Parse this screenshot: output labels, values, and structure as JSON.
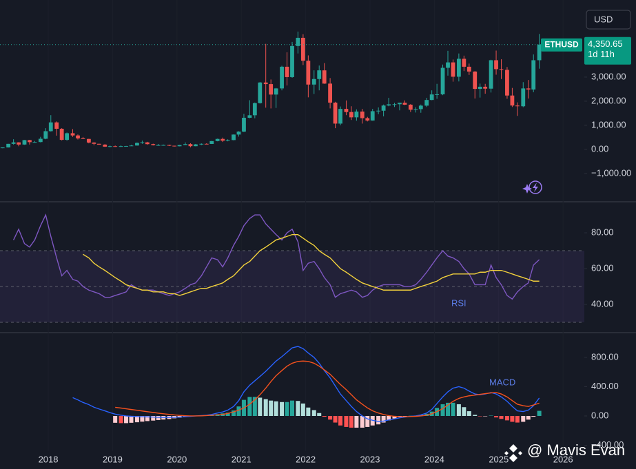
{
  "currency": "USD",
  "watermark": "@ Mavis Evan",
  "chart_data": [
    {
      "type": "candlestick",
      "symbol": "ETHUSD",
      "last_price": {
        "value": 4350.65,
        "label": "4,350.65"
      },
      "countdown": "1d 11h",
      "x": [
        2017.29,
        2017.38,
        2017.46,
        2017.54,
        2017.63,
        2017.71,
        2017.79,
        2017.88,
        2017.96,
        2018.04,
        2018.13,
        2018.21,
        2018.29,
        2018.38,
        2018.46,
        2018.54,
        2018.63,
        2018.71,
        2018.79,
        2018.88,
        2018.96,
        2019.04,
        2019.13,
        2019.21,
        2019.29,
        2019.38,
        2019.46,
        2019.54,
        2019.63,
        2019.71,
        2019.79,
        2019.88,
        2019.96,
        2020.04,
        2020.13,
        2020.21,
        2020.29,
        2020.38,
        2020.46,
        2020.54,
        2020.63,
        2020.71,
        2020.79,
        2020.88,
        2020.96,
        2021.04,
        2021.13,
        2021.21,
        2021.29,
        2021.38,
        2021.46,
        2021.54,
        2021.63,
        2021.71,
        2021.79,
        2021.88,
        2021.96,
        2022.04,
        2022.13,
        2022.21,
        2022.29,
        2022.38,
        2022.46,
        2022.54,
        2022.63,
        2022.71,
        2022.79,
        2022.88,
        2022.96,
        2023.04,
        2023.13,
        2023.21,
        2023.29,
        2023.38,
        2023.46,
        2023.54,
        2023.63,
        2023.71,
        2023.79,
        2023.88,
        2023.96,
        2024.04,
        2024.13,
        2024.21,
        2024.29,
        2024.38,
        2024.46,
        2024.54,
        2024.63,
        2024.71,
        2024.79,
        2024.88,
        2024.96,
        2025.04,
        2025.13,
        2025.21,
        2025.29,
        2025.38,
        2025.46,
        2025.54,
        2025.63
      ],
      "open": [
        50,
        79,
        230,
        290,
        200,
        385,
        300,
        305,
        440,
        755,
        1120,
        855,
        395,
        670,
        578,
        455,
        433,
        282,
        232,
        197,
        113,
        133,
        107,
        136,
        141,
        160,
        268,
        291,
        218,
        172,
        180,
        182,
        152,
        130,
        180,
        218,
        133,
        207,
        231,
        226,
        345,
        434,
        359,
        386,
        615,
        737,
        1312,
        1416,
        1919,
        2775,
        2710,
        2275,
        2530,
        3430,
        3000,
        4290,
        4630,
        3680,
        2690,
        2920,
        3280,
        2730,
        1940,
        1070,
        1680,
        1550,
        1330,
        1570,
        1295,
        1197,
        1585,
        1605,
        1820,
        1870,
        1875,
        1935,
        1855,
        1645,
        1670,
        1815,
        2050,
        2280,
        2285,
        3385,
        3610,
        3015,
        3760,
        3430,
        3230,
        2510,
        2600,
        2520,
        3700,
        3330,
        3300,
        2235,
        1820,
        1790,
        2530,
        2485,
        3700
      ],
      "high": [
        80,
        230,
        420,
        300,
        390,
        395,
        350,
        520,
        880,
        1420,
        1160,
        880,
        700,
        840,
        620,
        515,
        438,
        300,
        235,
        222,
        160,
        160,
        165,
        145,
        184,
        285,
        362,
        315,
        237,
        226,
        199,
        192,
        153,
        185,
        288,
        253,
        228,
        248,
        254,
        350,
        445,
        489,
        418,
        622,
        755,
        1475,
        2040,
        1945,
        2800,
        4380,
        2900,
        2550,
        3470,
        4030,
        4460,
        4890,
        4780,
        3900,
        3280,
        3480,
        3580,
        2960,
        1975,
        1780,
        2030,
        1790,
        1660,
        1680,
        1350,
        1680,
        1740,
        1860,
        2140,
        1930,
        1940,
        2030,
        1880,
        1750,
        1860,
        2140,
        2450,
        2720,
        3520,
        4090,
        3730,
        3980,
        3890,
        3560,
        3250,
        2730,
        2720,
        3720,
        4100,
        3740,
        3420,
        2550,
        1950,
        2790,
        2880,
        3940,
        4790
      ],
      "low": [
        48,
        78,
        200,
        130,
        190,
        200,
        280,
        290,
        420,
        740,
        570,
        370,
        360,
        520,
        410,
        430,
        250,
        167,
        193,
        102,
        82,
        102,
        101,
        123,
        140,
        158,
        230,
        194,
        162,
        152,
        155,
        138,
        118,
        126,
        175,
        86,
        128,
        176,
        215,
        224,
        335,
        308,
        334,
        376,
        530,
        715,
        1290,
        1290,
        1900,
        1730,
        1700,
        1720,
        2450,
        2650,
        2970,
        3980,
        3500,
        2160,
        2300,
        2450,
        2720,
        1700,
        880,
        1000,
        1420,
        1220,
        1190,
        1070,
        1160,
        1190,
        1460,
        1370,
        1790,
        1760,
        1620,
        1840,
        1550,
        1530,
        1520,
        1760,
        2040,
        2100,
        2250,
        3060,
        2810,
        2820,
        3250,
        3090,
        2110,
        2150,
        2310,
        2360,
        3100,
        2920,
        2100,
        1760,
        1390,
        1750,
        2110,
        2370,
        3350
      ],
      "close": [
        79,
        230,
        290,
        200,
        385,
        300,
        305,
        440,
        755,
        1120,
        855,
        395,
        670,
        578,
        455,
        433,
        282,
        232,
        197,
        113,
        133,
        107,
        136,
        141,
        160,
        268,
        291,
        218,
        172,
        180,
        182,
        152,
        130,
        180,
        218,
        133,
        207,
        231,
        226,
        345,
        434,
        359,
        386,
        615,
        737,
        1312,
        1416,
        1919,
        2775,
        2710,
        2275,
        2530,
        3430,
        3000,
        4290,
        4630,
        3680,
        2690,
        2920,
        3280,
        2730,
        1940,
        1070,
        1680,
        1550,
        1330,
        1570,
        1295,
        1197,
        1585,
        1605,
        1820,
        1870,
        1875,
        1935,
        1855,
        1645,
        1670,
        1815,
        2050,
        2280,
        2285,
        3385,
        3610,
        3015,
        3760,
        3430,
        3230,
        2510,
        2600,
        2520,
        3700,
        3330,
        3300,
        2235,
        1820,
        1790,
        2530,
        2485,
        3700,
        4350.65
      ],
      "up_color": "#26a69a",
      "down_color": "#ef5350",
      "xlim": [
        2017.25,
        2026.33
      ],
      "xticks": [
        2018,
        2019,
        2020,
        2021,
        2022,
        2023,
        2024,
        2025,
        2026
      ],
      "ylim": [
        -2090,
        6200
      ],
      "yticks": [
        {
          "value": -1000,
          "label": "−1,000.00"
        },
        {
          "value": 0,
          "label": "0.00"
        },
        {
          "value": 1000,
          "label": "1,000.00"
        },
        {
          "value": 2000,
          "label": "2,000.00"
        },
        {
          "value": 3000,
          "label": "3,000.00"
        }
      ]
    },
    {
      "type": "line",
      "label": "RSI",
      "ylim": [
        25.4,
        95.4
      ],
      "yticks": [
        {
          "value": 80,
          "label": "80.00"
        },
        {
          "value": 60,
          "label": "60.00"
        },
        {
          "value": 40,
          "label": "40.00"
        }
      ],
      "levels": [
        70,
        50,
        30
      ],
      "series": [
        {
          "color": "#7e57c2",
          "values": [
            null,
            null,
            76,
            82,
            74,
            72,
            76,
            84,
            90,
            78,
            66,
            56,
            59,
            54,
            53,
            50,
            48,
            47,
            46,
            44,
            44,
            45,
            46,
            47,
            51,
            49,
            48,
            48,
            48,
            47,
            46,
            45,
            46,
            47,
            49,
            51,
            52,
            56,
            61,
            66,
            65,
            61,
            66,
            73,
            78,
            84,
            88,
            90,
            90,
            85,
            82,
            79,
            76,
            80,
            82,
            75,
            59,
            63,
            64,
            60,
            55,
            51,
            44,
            46,
            47,
            48,
            47,
            44,
            45,
            48,
            50,
            51,
            51,
            51,
            51,
            50,
            50,
            51,
            54,
            58,
            62,
            66,
            70,
            67,
            66,
            64,
            60,
            57,
            51,
            51,
            51,
            62,
            55,
            51,
            45,
            43,
            47,
            50,
            52,
            62,
            65
          ]
        },
        {
          "color": "#f2d13c",
          "values": [
            null,
            null,
            null,
            null,
            null,
            null,
            null,
            null,
            null,
            null,
            null,
            null,
            null,
            null,
            null,
            68,
            66,
            63,
            61,
            59,
            57,
            55,
            53,
            51,
            50,
            49,
            48,
            48,
            47,
            47,
            47,
            46,
            46,
            45,
            46,
            47,
            48,
            49,
            49,
            50,
            51,
            52,
            54,
            56,
            59,
            62,
            64,
            67,
            70,
            72,
            74,
            76,
            77,
            78,
            79,
            79,
            77,
            75,
            73,
            70,
            68,
            66,
            63,
            60,
            58,
            56,
            54,
            52,
            51,
            50,
            49,
            48,
            48,
            48,
            48,
            48,
            48,
            49,
            50,
            51,
            52,
            53,
            55,
            56,
            57,
            57,
            57,
            57,
            57,
            58,
            58,
            59,
            59,
            59,
            58,
            57,
            56,
            55,
            54,
            53,
            53
          ]
        }
      ]
    },
    {
      "type": "line",
      "label": "MACD",
      "ylim": [
        -480,
        1110
      ],
      "yticks": [
        {
          "value": 800,
          "label": "800.00"
        },
        {
          "value": 400,
          "label": "400.00"
        },
        {
          "value": 0,
          "label": "0.00"
        },
        {
          "value": -400,
          "label": "−400.00"
        }
      ],
      "histogram": {
        "colors": [
          "#26a69a",
          "#b2dfdb",
          "#ff5252",
          "#ffcdd2"
        ],
        "values": [
          null,
          null,
          null,
          null,
          null,
          null,
          null,
          null,
          null,
          null,
          null,
          null,
          null,
          null,
          null,
          null,
          null,
          null,
          null,
          null,
          null,
          -93,
          -98,
          -98,
          -93,
          -86,
          -78,
          -70,
          -63,
          -56,
          -49,
          -42,
          -32,
          -23,
          -13,
          -5,
          0,
          3,
          5,
          10,
          25,
          35,
          45,
          75,
          130,
          220,
          260,
          260,
          250,
          230,
          210,
          200,
          190,
          190,
          210,
          205,
          170,
          115,
          80,
          40,
          -10,
          -50,
          -90,
          -130,
          -150,
          -160,
          -160,
          -160,
          -150,
          -130,
          -115,
          -90,
          -60,
          -35,
          -15,
          -5,
          3,
          5,
          15,
          30,
          60,
          110,
          160,
          180,
          180,
          160,
          120,
          65,
          15,
          -5,
          -5,
          5,
          -20,
          -40,
          -60,
          -80,
          -90,
          -80,
          -50,
          -10,
          70
        ]
      },
      "series": [
        {
          "color": "#2962ff",
          "values": [
            null,
            null,
            null,
            null,
            null,
            null,
            null,
            null,
            null,
            null,
            null,
            null,
            null,
            250,
            220,
            185,
            155,
            120,
            95,
            70,
            45,
            25,
            10,
            0,
            -5,
            -8,
            -10,
            -12,
            -15,
            -18,
            -19,
            -20,
            -18,
            -15,
            -10,
            -5,
            0,
            5,
            10,
            20,
            40,
            55,
            80,
            130,
            210,
            330,
            420,
            480,
            540,
            610,
            680,
            750,
            810,
            870,
            930,
            950,
            920,
            860,
            800,
            720,
            620,
            520,
            410,
            300,
            210,
            130,
            60,
            0,
            -40,
            -60,
            -75,
            -70,
            -55,
            -40,
            -25,
            -15,
            -5,
            0,
            15,
            40,
            90,
            170,
            260,
            330,
            380,
            400,
            380,
            340,
            300,
            290,
            300,
            320,
            300,
            260,
            200,
            130,
            70,
            60,
            80,
            140,
            245
          ]
        },
        {
          "color": "#f4511e",
          "values": [
            null,
            null,
            null,
            null,
            null,
            null,
            null,
            null,
            null,
            null,
            null,
            null,
            null,
            null,
            null,
            null,
            null,
            null,
            null,
            null,
            null,
            118,
            108,
            98,
            88,
            78,
            68,
            58,
            48,
            38,
            30,
            22,
            14,
            8,
            3,
            0,
            0,
            2,
            5,
            10,
            15,
            20,
            35,
            55,
            80,
            110,
            160,
            220,
            290,
            380,
            470,
            550,
            620,
            680,
            720,
            745,
            750,
            745,
            720,
            680,
            630,
            570,
            500,
            430,
            360,
            290,
            220,
            160,
            110,
            70,
            40,
            20,
            5,
            -5,
            -10,
            -10,
            -8,
            -5,
            0,
            10,
            30,
            60,
            100,
            150,
            200,
            240,
            260,
            275,
            285,
            295,
            305,
            315,
            320,
            300,
            260,
            210,
            160,
            140,
            130,
            150,
            175
          ]
        }
      ]
    }
  ]
}
